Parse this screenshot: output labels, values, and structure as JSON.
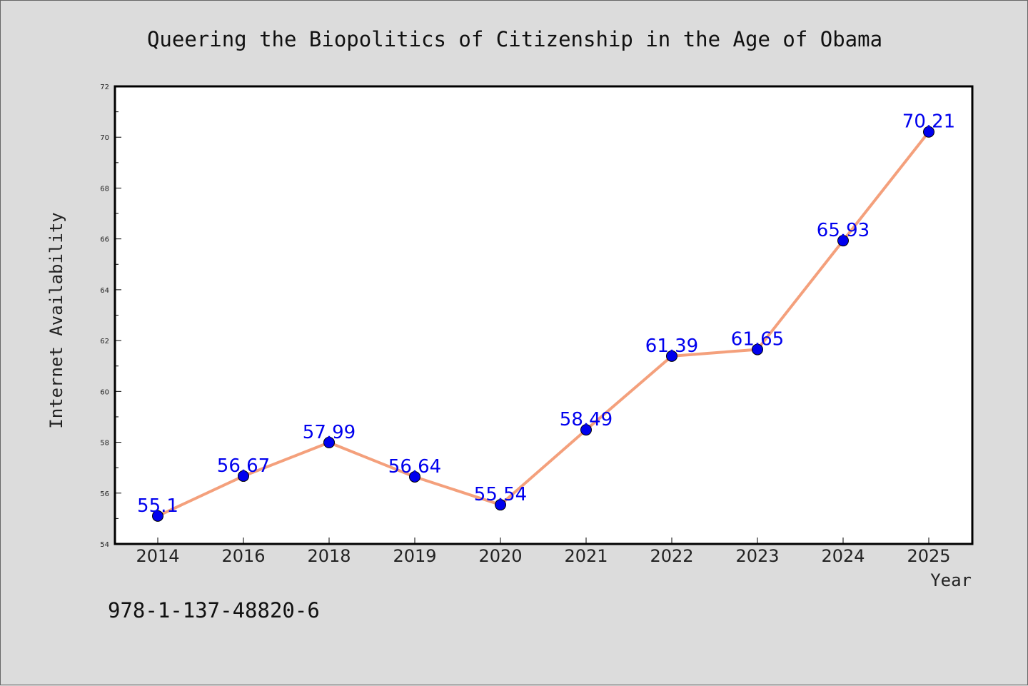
{
  "chart_data": {
    "type": "line",
    "title": "Queering the Biopolitics of Citizenship in the Age of Obama",
    "xlabel": "Year",
    "ylabel": "Internet Availability",
    "categories": [
      "2014",
      "2016",
      "2018",
      "2019",
      "2020",
      "2021",
      "2022",
      "2023",
      "2024",
      "2025"
    ],
    "series": [
      {
        "values": [
          55.1,
          56.67,
          57.99,
          56.64,
          55.54,
          58.49,
          61.39,
          61.65,
          65.93,
          70.21
        ],
        "labels": [
          "55.1",
          "56.67",
          "57.99",
          "56.64",
          "55.54",
          "58.49",
          "61.39",
          "61.65",
          "65.93",
          "70.21"
        ],
        "line_color": "#f4a07c",
        "marker_color": "#0000ee"
      }
    ],
    "ylim": [
      54,
      72
    ],
    "y_ticks": [
      54,
      56,
      58,
      60,
      62,
      64,
      66,
      68,
      70,
      72
    ],
    "y_tick_labels": [
      "54",
      "56",
      "58",
      "60",
      "62",
      "64",
      "66",
      "68",
      "70",
      "72"
    ],
    "grid": false,
    "legend": "none",
    "label_color": "#0000ee"
  },
  "footnote": "978-1-137-48820-6"
}
